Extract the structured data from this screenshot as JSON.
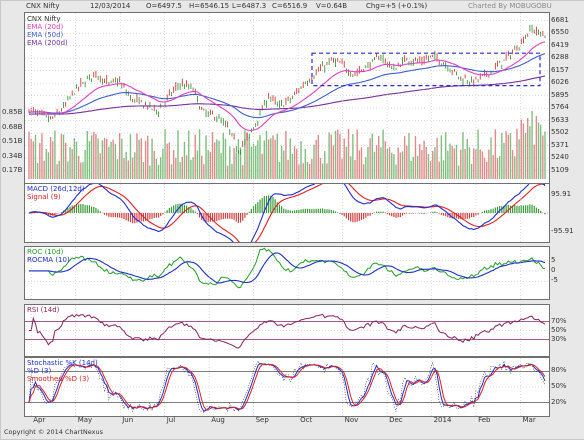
{
  "header": {
    "symbol": "CNX Nifty",
    "date": "12/03/2014",
    "open": "O=6497.5",
    "high": "H=6546.15",
    "low": "L=6487.3",
    "close": "C=6516.9",
    "volume": "V=0.64B",
    "change": "Chg=+5 (+0.1%)",
    "brand": "Charted By MOBUGOBU"
  },
  "footer": {
    "copyright": "Copyright © 2014 ChartNexus"
  },
  "colors": {
    "ema20": "#e040c0",
    "ema50": "#3f5fd0",
    "ema200": "#7b2fa0",
    "up": "#2a8a2a",
    "down": "#cc2222",
    "macd": "#1f2fcf",
    "signal": "#e02020",
    "roc": "#22a022",
    "rocma": "#1f2fcf",
    "rsi": "#8a2060",
    "k": "#1f2fcf",
    "d": "#e02020"
  },
  "chart_data": [
    {
      "type": "line",
      "panel": "price",
      "title": "CNX Nifty",
      "legend": [
        "EMA (20d)",
        "EMA (50d)",
        "EMA (200d)"
      ],
      "y_ticks": [
        6681,
        6550,
        6419,
        6288,
        6157,
        6026,
        5895,
        5764,
        5633,
        5502,
        5371,
        5240,
        5109
      ],
      "volume_ticks": [
        "0.85B",
        "0.68B",
        "0.51B",
        "0.34B",
        "0.17B"
      ],
      "ylim": [
        5020,
        6720
      ],
      "x_labels": [
        "Apr",
        "May",
        "Jun",
        "Jul",
        "Aug",
        "Sep",
        "Oct",
        "Nov",
        "Dec",
        "2014",
        "Feb",
        "Mar"
      ],
      "close_path": [
        {
          "m": 0,
          "v": 5750
        },
        {
          "m": 0.5,
          "v": 5640
        },
        {
          "m": 0.8,
          "v": 5780
        },
        {
          "m": 1.0,
          "v": 5930
        },
        {
          "m": 1.3,
          "v": 6060
        },
        {
          "m": 1.5,
          "v": 6130
        },
        {
          "m": 1.8,
          "v": 6010
        },
        {
          "m": 2.0,
          "v": 6060
        },
        {
          "m": 2.3,
          "v": 5860
        },
        {
          "m": 2.6,
          "v": 5800
        },
        {
          "m": 2.9,
          "v": 5730
        },
        {
          "m": 3.2,
          "v": 5920
        },
        {
          "m": 3.4,
          "v": 6020
        },
        {
          "m": 3.7,
          "v": 5960
        },
        {
          "m": 3.9,
          "v": 5720
        },
        {
          "m": 4.2,
          "v": 5680
        },
        {
          "m": 4.5,
          "v": 5540
        },
        {
          "m": 4.7,
          "v": 5320
        },
        {
          "m": 4.9,
          "v": 5430
        },
        {
          "m": 5.1,
          "v": 5610
        },
        {
          "m": 5.4,
          "v": 5900
        },
        {
          "m": 5.6,
          "v": 5780
        },
        {
          "m": 5.9,
          "v": 5860
        },
        {
          "m": 6.2,
          "v": 6030
        },
        {
          "m": 6.5,
          "v": 6150
        },
        {
          "m": 6.8,
          "v": 6260
        },
        {
          "m": 7.0,
          "v": 6230
        },
        {
          "m": 7.3,
          "v": 6120
        },
        {
          "m": 7.6,
          "v": 6200
        },
        {
          "m": 7.9,
          "v": 6310
        },
        {
          "m": 8.2,
          "v": 6170
        },
        {
          "m": 8.5,
          "v": 6280
        },
        {
          "m": 8.8,
          "v": 6250
        },
        {
          "m": 9.1,
          "v": 6310
        },
        {
          "m": 9.4,
          "v": 6210
        },
        {
          "m": 9.7,
          "v": 6080
        },
        {
          "m": 10.0,
          "v": 6040
        },
        {
          "m": 10.3,
          "v": 6120
        },
        {
          "m": 10.6,
          "v": 6230
        },
        {
          "m": 10.9,
          "v": 6360
        },
        {
          "m": 11.1,
          "v": 6480
        },
        {
          "m": 11.3,
          "v": 6600
        },
        {
          "m": 11.5,
          "v": 6540
        }
      ]
    },
    {
      "type": "line",
      "panel": "macd",
      "series": [
        {
          "name": "MACD (26d,12d)"
        },
        {
          "name": "Signal (9)"
        }
      ],
      "y_ticks": [
        95.91,
        0,
        -95.91
      ],
      "ylim": [
        -135,
        135
      ]
    },
    {
      "type": "line",
      "panel": "roc",
      "series": [
        {
          "name": "ROC (10d)"
        },
        {
          "name": "ROCMA (10)"
        }
      ],
      "y_ticks": [
        5,
        0,
        -5
      ],
      "ylim": [
        -12,
        10
      ]
    },
    {
      "type": "line",
      "panel": "rsi",
      "series": [
        {
          "name": "RSI (14d)"
        }
      ],
      "y_ticks": [
        "70%",
        "50%",
        "30%"
      ],
      "ylim": [
        0,
        100
      ]
    },
    {
      "type": "line",
      "panel": "stochastic",
      "series": [
        {
          "name": "Stochastic %K (14d)"
        },
        {
          "name": "%D (3)"
        },
        {
          "name": "Smoothed %D (3)"
        }
      ],
      "y_ticks": [
        "80%",
        "50%",
        "20%"
      ],
      "ylim": [
        0,
        100
      ]
    }
  ]
}
